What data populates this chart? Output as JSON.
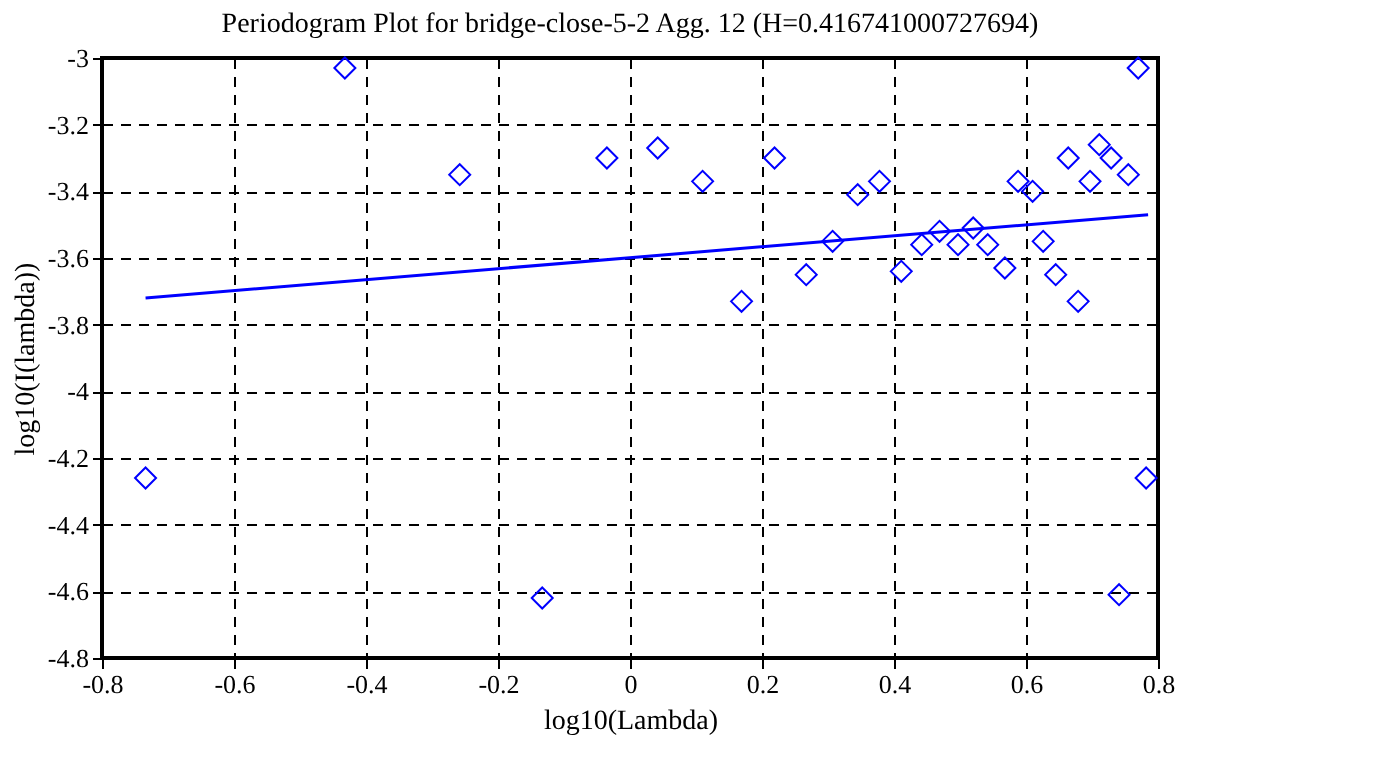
{
  "chart_data": {
    "type": "scatter",
    "title": "Periodogram Plot for bridge-close-5-2 Agg. 12 (H=0.416741000727694)",
    "xlabel": "log10(Lambda)",
    "ylabel": "log10(I(lambda))",
    "xlim": [
      -0.8,
      0.8
    ],
    "xticks": [
      -0.8,
      -0.6,
      -0.4,
      -0.2,
      0,
      0.2,
      0.4,
      0.6,
      0.8
    ],
    "ylim": [
      -4.8,
      -3
    ],
    "yticks": [
      -4.8,
      -4.6,
      -4.4,
      -4.2,
      -4,
      -3.8,
      -3.6,
      -3.4,
      -3.2,
      -3
    ],
    "grid": true,
    "series": [
      {
        "marker": "diamond",
        "color": "#0000ff",
        "x": [
          -0.734,
          -0.432,
          -0.258,
          -0.133,
          -0.035,
          0.042,
          0.11,
          0.169,
          0.219,
          0.267,
          0.307,
          0.345,
          0.378,
          0.411,
          0.442,
          0.469,
          0.497,
          0.52,
          0.542,
          0.568,
          0.588,
          0.61,
          0.626,
          0.645,
          0.664,
          0.679,
          0.697,
          0.711,
          0.729,
          0.741,
          0.755,
          0.77,
          0.782
        ],
        "values": [
          -4.26,
          -3.03,
          -3.35,
          -4.62,
          -3.3,
          -3.27,
          -3.37,
          -3.73,
          -3.3,
          -3.65,
          -3.55,
          -3.41,
          -3.37,
          -3.64,
          -3.56,
          -3.52,
          -3.56,
          -3.51,
          -3.56,
          -3.63,
          -3.37,
          -3.4,
          -3.55,
          -3.65,
          -3.3,
          -3.73,
          -3.37,
          -3.26,
          -3.3,
          -4.61,
          -3.35,
          -3.03,
          -4.26
        ]
      },
      {
        "type": "line",
        "marker": "none",
        "color": "#0000ff",
        "x": [
          -0.734,
          0.785
        ],
        "values": [
          -3.72,
          -3.47
        ]
      }
    ]
  }
}
